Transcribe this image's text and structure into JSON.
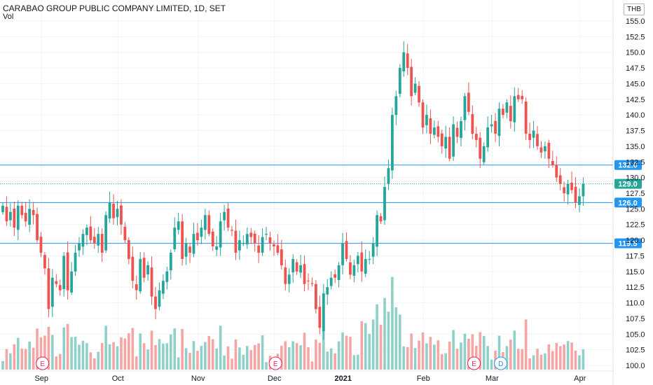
{
  "header": {
    "title": "CARABAO GROUP PUBLIC COMPANY LIMITED, 1D, SET",
    "volume_label": "Vol",
    "currency": "THB"
  },
  "colors": {
    "up": "#26a69a",
    "down": "#ef5350",
    "up_volume": "#8fd1c9",
    "down_volume": "#f5a6a4",
    "level_line": "#2196f3",
    "last_price": "#26a69a",
    "axis_text": "#131722"
  },
  "chart_data": {
    "type": "candlestick",
    "title": "CARABAO GROUP PUBLIC COMPANY LIMITED, 1D, SET",
    "ylabel": "",
    "ylim": [
      100,
      155
    ],
    "y_ticks": [
      "100.0",
      "102.5",
      "105.0",
      "107.5",
      "110.0",
      "112.5",
      "115.0",
      "117.5",
      "120.0",
      "122.5",
      "125.0",
      "127.5",
      "130.0",
      "132.5",
      "135.0",
      "137.5",
      "140.0",
      "142.5",
      "145.0",
      "147.5",
      "150.0",
      "152.5",
      "155.0"
    ],
    "x_ticks": [
      {
        "label": "Sep",
        "index": 5
      },
      {
        "label": "Oct",
        "index": 25
      },
      {
        "label": "Nov",
        "index": 46
      },
      {
        "label": "Dec",
        "index": 66
      },
      {
        "label": "2021",
        "index": 84
      },
      {
        "label": "Feb",
        "index": 105
      },
      {
        "label": "Mar",
        "index": 123
      },
      {
        "label": "Apr",
        "index": 146
      }
    ],
    "grid": true,
    "horizontal_levels": [
      {
        "label": "132.0",
        "value": 132.0
      },
      {
        "label": "126.0",
        "value": 126.0
      },
      {
        "label": "119.5",
        "value": 119.5
      }
    ],
    "last_price": {
      "label": "129.0",
      "value": 129.0
    },
    "events": [
      {
        "label": "E",
        "index": 6
      },
      {
        "label": "E",
        "index": 67
      },
      {
        "label": "E",
        "index": 119
      },
      {
        "label": "D",
        "index": 126
      }
    ],
    "closes": [
      125.5,
      123,
      124.5,
      122,
      125.5,
      124,
      123,
      125,
      124,
      120,
      118,
      115.5,
      109,
      114,
      113,
      112,
      117.5,
      112,
      115,
      118,
      119.5,
      121,
      122,
      120,
      119.5,
      121,
      118,
      124,
      126,
      123.5,
      125,
      122.5,
      120,
      117,
      113.5,
      112,
      117,
      114,
      116,
      111,
      109,
      112,
      113.5,
      115,
      118,
      122,
      123,
      117,
      119.5,
      118,
      121,
      120,
      122,
      124,
      121,
      119,
      119,
      123,
      124.5,
      122,
      121.5,
      118,
      120,
      119.5,
      121,
      120.5,
      119.5,
      118,
      120.5,
      121,
      119.5,
      119,
      118,
      116,
      113,
      114.5,
      117,
      115,
      116,
      113,
      113.5,
      113,
      109,
      106,
      111.5,
      112.5,
      114,
      114,
      116,
      119.5,
      117,
      114.5,
      116,
      117.5,
      115,
      117,
      117,
      119.5,
      124,
      123,
      128.5,
      131.5,
      140,
      143,
      147.5,
      150,
      147.5,
      143,
      145,
      142,
      138,
      140,
      137,
      138,
      136.5,
      135,
      136.5,
      133,
      138.5,
      136.5,
      139,
      143,
      140.5,
      137,
      136,
      133,
      135,
      138,
      138.5,
      137,
      141,
      140,
      142,
      139,
      143,
      142.5,
      142.5,
      137,
      136,
      137.5,
      135,
      134,
      135,
      133,
      132,
      130,
      129,
      127.5,
      129,
      128,
      126,
      127,
      129
    ]
  }
}
